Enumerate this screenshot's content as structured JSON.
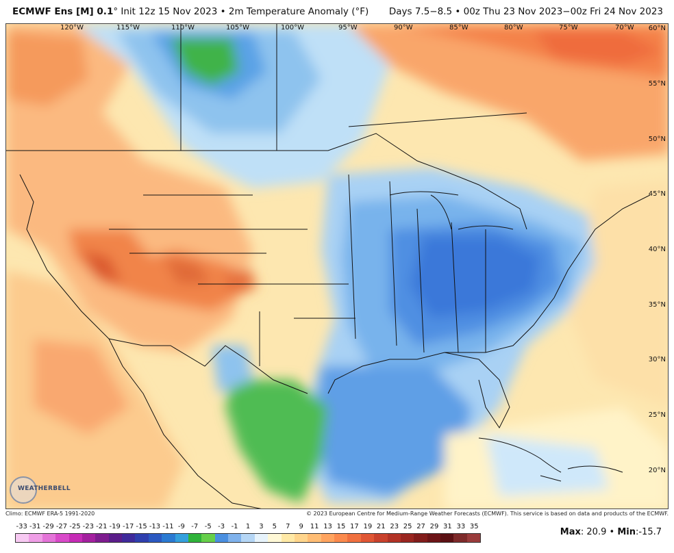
{
  "header": {
    "model": "ECMWF Ens [M] 0.1",
    "degree_symbol": "°",
    "init_text": "Init 12z 15 Nov 2023",
    "separator": "•",
    "variable": "2m Temperature Anomaly (°F)",
    "valid_text": "Days 7.5−8.5 • 00z Thu 23 Nov 2023−00z Fri 24 Nov 2023"
  },
  "longitude_labels": [
    "120°W",
    "115°W",
    "110°W",
    "105°W",
    "100°W",
    "95°W",
    "90°W",
    "85°W",
    "80°W",
    "75°W",
    "70°W"
  ],
  "latitude_labels": [
    "60°N",
    "55°N",
    "50°N",
    "45°N",
    "40°N",
    "35°N",
    "30°N",
    "25°N",
    "20°N"
  ],
  "credits": {
    "climo": "Climo: ECMWF ERA-5 1991-2020",
    "copyright": "© 2023 European Centre for Medium-Range Weather Forecasts (ECMWF). This service is based on data and products of the ECMWF."
  },
  "logo": {
    "text": "WEATHERBELL"
  },
  "colorbar": {
    "labels": [
      "-33",
      "-31",
      "-29",
      "-27",
      "-25",
      "-23",
      "-21",
      "-19",
      "-17",
      "-15",
      "-13",
      "-11",
      "-9",
      "-7",
      "-5",
      "-3",
      "-1",
      "1",
      "3",
      "5",
      "7",
      "9",
      "11",
      "13",
      "15",
      "17",
      "19",
      "21",
      "23",
      "25",
      "27",
      "29",
      "31",
      "33",
      "35"
    ],
    "colors": [
      "#f7c9f2",
      "#ef9ee6",
      "#e474d8",
      "#d94ac9",
      "#c62bb6",
      "#a4209f",
      "#7e1c8f",
      "#5b1d8a",
      "#3f2a9b",
      "#2f3fae",
      "#2b59c1",
      "#2a7ad2",
      "#34a0dc",
      "#2fb33a",
      "#66cf4a",
      "#4a8fe0",
      "#7fb2ec",
      "#b5d6f5",
      "#e7f3fb",
      "#fff8d6",
      "#ffe9a6",
      "#ffd58c",
      "#ffbd74",
      "#ffa45f",
      "#fb8a4d",
      "#f0703f",
      "#e05634",
      "#c9412c",
      "#b23225",
      "#9a2620",
      "#821c1b",
      "#6c1417",
      "#5c1114",
      "#7e2a2a",
      "#9a3b3b"
    ]
  },
  "stats": {
    "max_label": "Max",
    "max_value": "20.9",
    "sep": "•",
    "min_label": "Min",
    "min_value": "-15.7"
  }
}
